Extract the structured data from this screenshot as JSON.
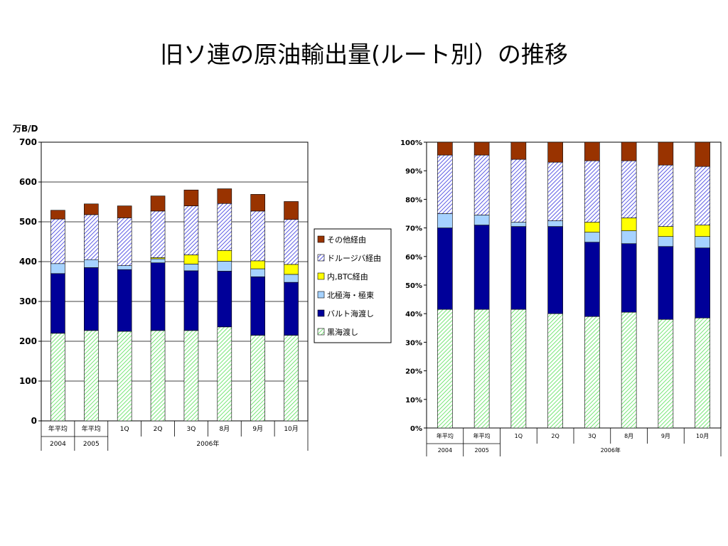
{
  "title": "旧ソ連の原油輸出量(ルート別）の推移",
  "legend": [
    "その他経由",
    "ドルージバ経由",
    "内,BTC経由",
    "北極海・極東",
    "バルト海渡し",
    "黒海渡し"
  ],
  "categories": [
    "年平均",
    "年平均",
    "1Q",
    "2Q",
    "3Q",
    "8月",
    "9月",
    "10月"
  ],
  "year_labels": [
    "2004",
    "2005",
    "2006年"
  ],
  "chart_data": [
    {
      "type": "bar",
      "stacked": true,
      "ylabel": "万B/D",
      "ylim": [
        0,
        700
      ],
      "yticks": [
        "0",
        "100",
        "200",
        "300",
        "400",
        "500",
        "600",
        "700"
      ],
      "categories": [
        "年平均",
        "年平均",
        "1Q",
        "2Q",
        "3Q",
        "8月",
        "9月",
        "10月"
      ],
      "series": [
        {
          "name": "黒海渡し",
          "color": "#66ee66",
          "values": [
            220,
            227,
            225,
            227,
            227,
            236,
            215,
            215
          ]
        },
        {
          "name": "バルト海渡し",
          "color": "#000099",
          "values": [
            150,
            158,
            155,
            170,
            150,
            140,
            147,
            133
          ]
        },
        {
          "name": "北極海・極東",
          "color": "#a6d2ff",
          "values": [
            25,
            20,
            10,
            10,
            17,
            25,
            20,
            20
          ]
        },
        {
          "name": "内,BTC経由",
          "color": "#ffff00",
          "values": [
            0,
            0,
            0,
            3,
            23,
            27,
            20,
            25
          ]
        },
        {
          "name": "ドルージバ経由",
          "color": "#6666ff",
          "values": [
            112,
            113,
            120,
            117,
            123,
            118,
            125,
            113
          ]
        },
        {
          "name": "その他経由",
          "color": "#993300",
          "values": [
            22,
            27,
            30,
            38,
            40,
            37,
            42,
            45
          ]
        }
      ],
      "legend_position": "right",
      "grid": true
    },
    {
      "type": "bar",
      "stacked": true,
      "percent": true,
      "ylim": [
        0,
        100
      ],
      "yticks": [
        "0%",
        "10%",
        "20%",
        "30%",
        "40%",
        "50%",
        "60%",
        "70%",
        "80%",
        "90%",
        "100%"
      ],
      "categories": [
        "年平均",
        "年平均",
        "1Q",
        "2Q",
        "3Q",
        "8月",
        "9月",
        "10月"
      ],
      "series": [
        {
          "name": "黒海渡し",
          "color": "#66ee66",
          "values": [
            41.5,
            41.5,
            41.5,
            40,
            39,
            40.5,
            38,
            38.5
          ]
        },
        {
          "name": "バルト海渡し",
          "color": "#000099",
          "values": [
            28.5,
            29.5,
            29,
            30.5,
            26,
            24,
            25.5,
            24.5
          ]
        },
        {
          "name": "北極海・極東",
          "color": "#a6d2ff",
          "values": [
            5,
            3.5,
            1.5,
            2,
            3.5,
            4.5,
            3.5,
            4
          ]
        },
        {
          "name": "内,BTC経由",
          "color": "#ffff00",
          "values": [
            0,
            0,
            0,
            0,
            3.5,
            4.5,
            3.5,
            4
          ]
        },
        {
          "name": "ドルージバ経由",
          "color": "#6666ff",
          "values": [
            20.5,
            21,
            22,
            20.5,
            21.5,
            20,
            21.5,
            20.5
          ]
        },
        {
          "name": "その他経由",
          "color": "#993300",
          "values": [
            4.5,
            4.5,
            6,
            7,
            6.5,
            6.5,
            8,
            8.5
          ]
        }
      ],
      "grid": false
    }
  ]
}
